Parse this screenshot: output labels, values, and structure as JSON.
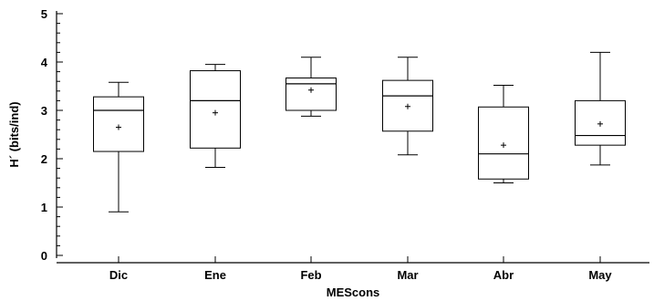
{
  "chart_data": {
    "type": "boxplot",
    "xlabel": "MEScons",
    "ylabel": "H´ (bits/ind)",
    "ylim": [
      0,
      5
    ],
    "y_ticks": [
      0,
      1,
      2,
      3,
      4,
      5
    ],
    "y_minor_step": 0.2,
    "categories": [
      "Dic",
      "Ene",
      "Feb",
      "Mar",
      "Abr",
      "May"
    ],
    "boxes": [
      {
        "min": 0.9,
        "q1": 2.15,
        "median": 3.0,
        "q3": 3.28,
        "max": 3.58,
        "mean": 2.65
      },
      {
        "min": 1.82,
        "q1": 2.22,
        "median": 3.2,
        "q3": 3.82,
        "max": 3.95,
        "mean": 2.95
      },
      {
        "min": 2.88,
        "q1": 3.0,
        "median": 3.55,
        "q3": 3.67,
        "max": 4.1,
        "mean": 3.42
      },
      {
        "min": 2.08,
        "q1": 2.57,
        "median": 3.3,
        "q3": 3.62,
        "max": 4.1,
        "mean": 3.08
      },
      {
        "min": 1.5,
        "q1": 1.58,
        "median": 2.1,
        "q3": 3.07,
        "max": 3.52,
        "mean": 2.28
      },
      {
        "min": 1.87,
        "q1": 2.28,
        "median": 2.48,
        "q3": 3.2,
        "max": 4.2,
        "mean": 2.72
      }
    ]
  }
}
